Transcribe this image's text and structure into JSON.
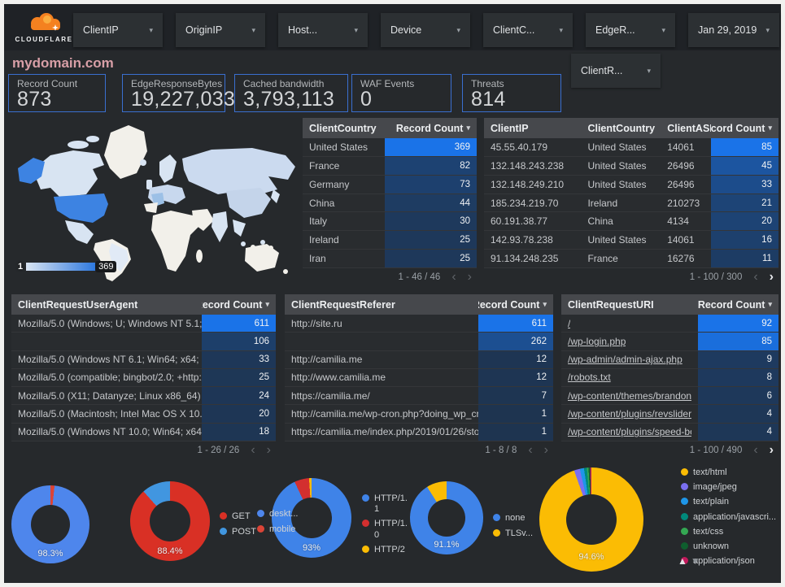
{
  "brand": {
    "logo_text": "CLOUDFLARE"
  },
  "title": "mydomain.com",
  "filters": {
    "chips_row1": [
      "ClientIP",
      "OriginIP",
      "Host...",
      "Device",
      "ClientC...",
      "EdgeR..."
    ],
    "date_filter": "Jan 29, 2019",
    "chips_row2": [
      "ClientR..."
    ]
  },
  "scorecards": [
    {
      "label": "Record Count",
      "value": "873"
    },
    {
      "label": "EdgeResponseBytes",
      "value": "19,227,033"
    },
    {
      "label": "Cached bandwidth",
      "value": "3,793,113"
    },
    {
      "label": "WAF Events",
      "value": "0"
    },
    {
      "label": "Threats",
      "value": "814"
    }
  ],
  "map": {
    "legend_min": "1",
    "legend_max": "369"
  },
  "tables": {
    "client_country": {
      "headers": [
        "ClientCountry",
        "Record Count"
      ],
      "rows": [
        [
          "United States",
          369
        ],
        [
          "France",
          82
        ],
        [
          "Germany",
          73
        ],
        [
          "China",
          44
        ],
        [
          "Italy",
          30
        ],
        [
          "Ireland",
          25
        ],
        [
          "Iran",
          25
        ]
      ],
      "pagination": "1 - 46 / 46",
      "next_enabled": false
    },
    "client_ip": {
      "headers": [
        "ClientIP",
        "ClientCountry",
        "ClientASN",
        "Record Count"
      ],
      "rows": [
        [
          "45.55.40.179",
          "United States",
          "14061",
          85
        ],
        [
          "132.148.243.238",
          "United States",
          "26496",
          45
        ],
        [
          "132.148.249.210",
          "United States",
          "26496",
          33
        ],
        [
          "185.234.219.70",
          "Ireland",
          "210273",
          21
        ],
        [
          "60.191.38.77",
          "China",
          "4134",
          20
        ],
        [
          "142.93.78.238",
          "United States",
          "14061",
          16
        ],
        [
          "91.134.248.235",
          "France",
          "16276",
          11
        ]
      ],
      "pagination": "1 - 100 / 300",
      "next_enabled": true
    },
    "user_agent": {
      "headers": [
        "ClientRequestUserAgent",
        "Record Count"
      ],
      "rows": [
        [
          "Mozilla/5.0 (Windows; U; Windows NT 5.1; en-U...",
          611
        ],
        [
          "",
          106
        ],
        [
          "Mozilla/5.0 (Windows NT 6.1; Win64; x64; rv:64...",
          33
        ],
        [
          "Mozilla/5.0 (compatible; bingbot/2.0; +http://w...",
          25
        ],
        [
          "Mozilla/5.0 (X11; Datanyze; Linux x86_64) Appl...",
          24
        ],
        [
          "Mozilla/5.0 (Macintosh; Intel Mac OS X 10.11; r...",
          20
        ],
        [
          "Mozilla/5.0 (Windows NT 10.0; Win64; x64) App...",
          18
        ]
      ],
      "pagination": "1 - 26 / 26",
      "next_enabled": false
    },
    "referer": {
      "headers": [
        "ClientRequestReferer",
        "Record Count"
      ],
      "rows": [
        [
          "http://site.ru",
          611
        ],
        [
          "",
          262
        ],
        [
          "http://camilia.me",
          12
        ],
        [
          "http://www.camilia.me",
          12
        ],
        [
          "https://camilia.me/",
          7
        ],
        [
          "http://camilia.me/wp-cron.php?doing_wp_cron...",
          1
        ],
        [
          "https://camilia.me/index.php/2019/01/26/stor...",
          1
        ]
      ],
      "pagination": "1 - 8 / 8",
      "next_enabled": false
    },
    "uri": {
      "headers": [
        "ClientRequestURI",
        "Record Count"
      ],
      "rows": [
        [
          "/",
          92
        ],
        [
          "/wp-login.php",
          85
        ],
        [
          "/wp-admin/admin-ajax.php",
          9
        ],
        [
          "/robots.txt",
          8
        ],
        [
          "/wp-content/themes/brandon/plu...",
          6
        ],
        [
          "/wp-content/plugins/revslider/rs-p...",
          4
        ],
        [
          "/wp-content/plugins/speed-booste...",
          4
        ]
      ],
      "pagination": "1 - 100 / 490",
      "next_enabled": true
    }
  },
  "chart_data": [
    {
      "type": "pie",
      "name": "device-type",
      "center_label": "98.3%",
      "legend_position": "right",
      "slices": [
        {
          "label": "deskt...",
          "value": 98.3,
          "color": "#4e86ec"
        },
        {
          "label": "mobile",
          "value": 1.7,
          "color": "#db4437"
        }
      ]
    },
    {
      "type": "pie",
      "name": "request-method",
      "center_label": "88.4%",
      "legend_position": "right",
      "slices": [
        {
          "label": "GET",
          "value": 88.4,
          "color": "#d93025"
        },
        {
          "label": "POST",
          "value": 11.6,
          "color": "#4196e0"
        }
      ]
    },
    {
      "type": "pie",
      "name": "http-protocol",
      "center_label": "93%",
      "legend_position": "right",
      "slices": [
        {
          "label": "HTTP/1.1",
          "value": 93,
          "color": "#3f83e8"
        },
        {
          "label": "HTTP/1.0",
          "value": 6,
          "color": "#d32f2f"
        },
        {
          "label": "HTTP/2",
          "value": 1,
          "color": "#fbbc04"
        }
      ]
    },
    {
      "type": "pie",
      "name": "tls-version",
      "center_label": "91.1%",
      "legend_position": "right",
      "slices": [
        {
          "label": "none",
          "value": 91.1,
          "color": "#3f83e8"
        },
        {
          "label": "TLSv...",
          "value": 8.9,
          "color": "#fbbc04"
        }
      ]
    },
    {
      "type": "pie",
      "name": "content-type",
      "center_label": "94.6%",
      "legend_position": "right",
      "slices": [
        {
          "label": "text/html",
          "value": 94.6,
          "color": "#fbbc04"
        },
        {
          "label": "image/jpeg",
          "value": 1.8,
          "color": "#7a6ff0"
        },
        {
          "label": "text/plain",
          "value": 1.3,
          "color": "#1e96e8"
        },
        {
          "label": "application/javascri...",
          "value": 0.9,
          "color": "#00897b"
        },
        {
          "label": "text/css",
          "value": 0.5,
          "color": "#34a853"
        },
        {
          "label": "unknown",
          "value": 0.5,
          "color": "#0f5e2e"
        },
        {
          "label": "application/json",
          "value": 0.4,
          "color": "#c2185b"
        }
      ]
    }
  ],
  "icons": {
    "caret_down": "▾",
    "prev": "‹",
    "next": "›",
    "sort_up": "▲",
    "sort_down": "▼"
  },
  "colors": {
    "accent_blue": "#1a73e8",
    "heat_low": "#1e3450",
    "scorecard_border": "#3a6fd0",
    "title_pink": "#d89fa7"
  }
}
